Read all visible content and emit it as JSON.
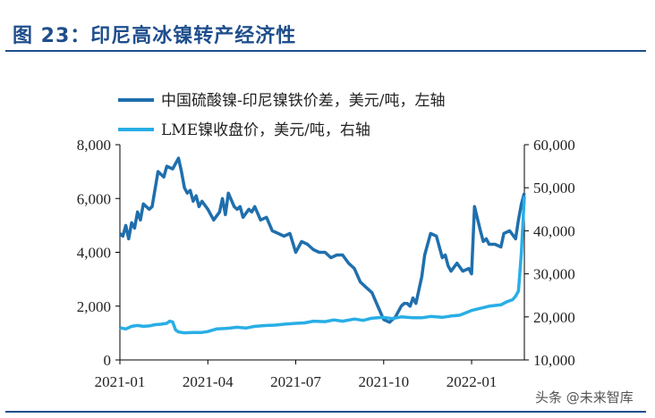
{
  "figure": {
    "title": "图 23：印尼高冰镍转产经济性"
  },
  "watermark": "头条 @未来智库",
  "chart_data": {
    "type": "line",
    "x_tick_labels": [
      "2021-01",
      "2021-04",
      "2021-07",
      "2021-10",
      "2022-01"
    ],
    "x_tick_positions": [
      0,
      3,
      6,
      9,
      12
    ],
    "y_left": {
      "ylim": [
        0,
        8000
      ],
      "ticks": [
        "0",
        "2,000",
        "4,000",
        "6,000",
        "8,000"
      ],
      "values": [
        0,
        2000,
        4000,
        6000,
        8000
      ]
    },
    "y_right": {
      "ylim": [
        10000,
        60000
      ],
      "ticks": [
        "10,000",
        "20,000",
        "30,000",
        "40,000",
        "50,000",
        "60,000"
      ],
      "values": [
        10000,
        20000,
        30000,
        40000,
        50000,
        60000
      ]
    },
    "colors": {
      "spread": "#1f6fad",
      "lme": "#29aee6",
      "title": "#1f4e8c"
    },
    "series": [
      {
        "name": "中国硫酸镍-印尼镍铁价差，美元/吨，左轴",
        "axis": "left",
        "x": [
          0,
          0.1,
          0.2,
          0.3,
          0.4,
          0.5,
          0.6,
          0.7,
          0.8,
          1.0,
          1.1,
          1.3,
          1.5,
          1.6,
          1.8,
          2.0,
          2.1,
          2.2,
          2.3,
          2.4,
          2.5,
          2.6,
          2.7,
          2.8,
          3.0,
          3.2,
          3.4,
          3.5,
          3.6,
          3.7,
          3.9,
          4.0,
          4.1,
          4.2,
          4.4,
          4.5,
          4.6,
          4.8,
          5.0,
          5.2,
          5.4,
          5.6,
          5.8,
          6.0,
          6.2,
          6.4,
          6.6,
          6.8,
          7.0,
          7.2,
          7.4,
          7.6,
          7.8,
          8.0,
          8.2,
          8.4,
          8.6,
          8.8,
          9.0,
          9.2,
          9.4,
          9.6,
          9.7,
          9.8,
          9.9,
          10.0,
          10.1,
          10.3,
          10.4,
          10.6,
          10.8,
          11.0,
          11.1,
          11.2,
          11.3,
          11.5,
          11.7,
          11.9,
          12.0,
          12.1,
          12.3,
          12.4,
          12.5,
          12.6,
          12.8,
          13.0,
          13.1,
          13.3,
          13.5,
          13.6,
          13.7,
          13.8
        ],
        "values": [
          4700,
          4600,
          5000,
          4500,
          5100,
          4900,
          5500,
          5200,
          5800,
          5600,
          5700,
          7000,
          6800,
          7200,
          7100,
          7500,
          7000,
          6400,
          6200,
          6300,
          5900,
          6100,
          5700,
          5900,
          5600,
          5200,
          5500,
          6000,
          5400,
          6200,
          5700,
          5600,
          5700,
          5300,
          5600,
          5500,
          5700,
          5200,
          5300,
          4800,
          4700,
          4600,
          4700,
          4000,
          4400,
          4300,
          4100,
          4000,
          4000,
          3800,
          3900,
          3900,
          3600,
          3400,
          2900,
          2700,
          2500,
          2000,
          1500,
          1400,
          1600,
          2000,
          2100,
          2100,
          2000,
          2300,
          2100,
          3100,
          3900,
          4700,
          4600,
          3800,
          3900,
          3500,
          3300,
          3600,
          3300,
          3400,
          3200,
          5700,
          4800,
          4400,
          4500,
          4300,
          4300,
          4200,
          4700,
          4800,
          4500,
          5200,
          5800,
          6200
        ]
      },
      {
        "name": "LME镍收盘价，美元/吨，右轴",
        "axis": "right",
        "x": [
          0,
          0.2,
          0.4,
          0.6,
          0.8,
          1.0,
          1.2,
          1.4,
          1.6,
          1.7,
          1.8,
          1.9,
          2.0,
          2.2,
          2.5,
          2.8,
          3.0,
          3.3,
          3.6,
          4.0,
          4.3,
          4.6,
          5.0,
          5.3,
          5.6,
          6.0,
          6.3,
          6.6,
          7.0,
          7.3,
          7.6,
          8.0,
          8.3,
          8.6,
          9.0,
          9.3,
          9.6,
          10.0,
          10.3,
          10.6,
          11.0,
          11.3,
          11.6,
          12.0,
          12.3,
          12.6,
          13.0,
          13.2,
          13.4,
          13.5,
          13.6,
          13.7,
          13.8
        ],
        "values": [
          17500,
          17200,
          17800,
          18000,
          17800,
          17900,
          18200,
          18300,
          18500,
          19000,
          18800,
          17000,
          16500,
          16300,
          16400,
          16400,
          16600,
          17200,
          17300,
          17600,
          17400,
          17800,
          18000,
          18100,
          18300,
          18500,
          18600,
          19000,
          18900,
          19300,
          19000,
          19500,
          19200,
          19700,
          19900,
          19600,
          20000,
          19800,
          19800,
          20100,
          19900,
          20200,
          20400,
          21500,
          22000,
          22500,
          22800,
          23500,
          24000,
          24800,
          26000,
          35000,
          48000
        ]
      }
    ]
  }
}
